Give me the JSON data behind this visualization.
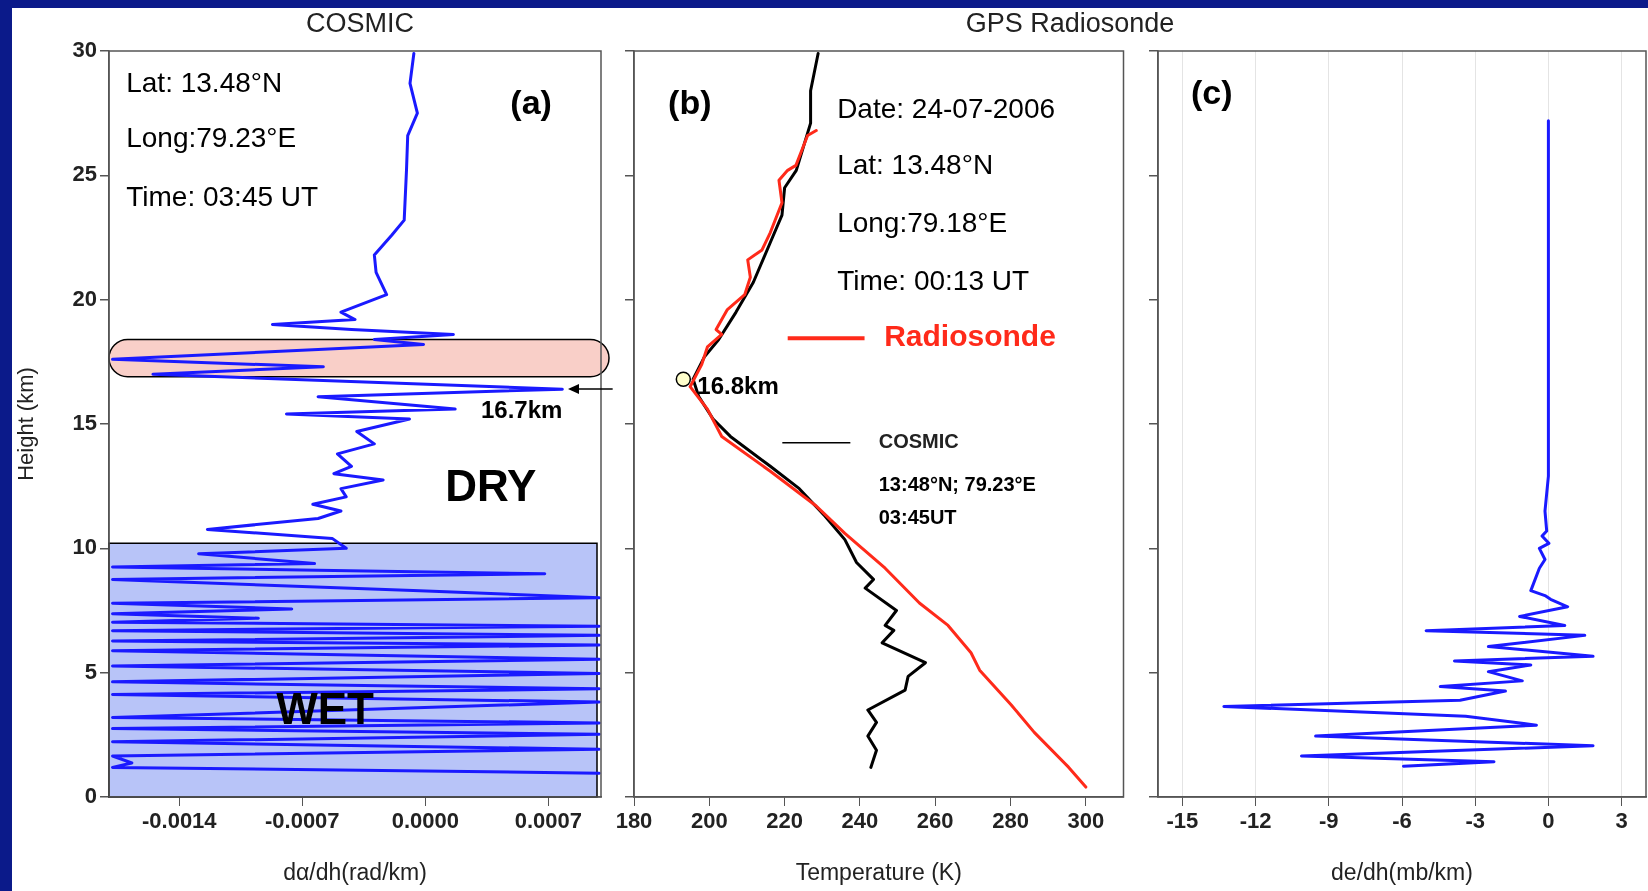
{
  "chart_data": [
    {
      "type": "line",
      "title": "COSMIC",
      "xlabel": "dα/dh(rad/km)",
      "ylabel": "Height (km)",
      "xlim": [
        -0.0018,
        0.001
      ],
      "xticks": [
        -0.0014,
        -0.0007,
        {
          "value": 0,
          "label": "0.0000"
        },
        0.0007
      ],
      "ylim": [
        0,
        30
      ],
      "yticks": [
        0,
        5,
        10,
        15,
        20,
        25,
        30
      ],
      "series": [
        {
          "color": "#1a1aff",
          "x": [
            -6.5e-05,
            -8.7e-05,
            -4.5e-05,
            -0.0001,
            -0.000107,
            -0.00012,
            -0.00019,
            -0.00029,
            -0.00028,
            -0.00022,
            -0.00048,
            -0.0004,
            -0.00087,
            -0.00042,
            0.00016,
            -0.00029,
            -1e-05,
            -0.00061,
            -0.00178,
            -0.00058,
            -0.00155,
            0.00078,
            -0.00061,
            0.00017,
            -0.00079,
            -9e-05,
            -0.00039,
            -0.00029,
            -0.0005,
            -0.00042,
            -0.00052,
            -0.00024,
            -0.00048,
            -0.00045,
            -0.00064,
            -0.00048,
            -0.00061,
            -0.00124,
            -0.00053,
            -0.00045,
            -0.00129,
            -0.00063,
            -0.00178,
            0.00068,
            -0.00178,
            -3e-05,
            0.00099,
            -0.00178,
            -0.00076,
            -0.00178,
            -0.00095,
            -0.00178,
            0.00099,
            -0.00178,
            0.00099,
            -0.00178,
            0.00099,
            -0.00178,
            0.00099,
            -0.00178,
            0.00099,
            -0.00178,
            0.00099,
            -0.00178,
            0.00099,
            -0.00178,
            0.00099,
            -0.00178,
            0.00099,
            -0.00178,
            0.00099,
            -0.00178,
            -0.00167,
            -0.00178,
            0.00099
          ],
          "values": [
            29.9,
            28.7,
            27.5,
            26.6,
            25.2,
            23.2,
            22.6,
            21.8,
            21.1,
            20.2,
            19.5,
            19.2,
            19.0,
            18.8,
            18.6,
            18.4,
            18.2,
            18.0,
            17.6,
            17.3,
            17.0,
            16.4,
            16.1,
            15.6,
            15.4,
            15.2,
            14.7,
            14.2,
            13.8,
            13.3,
            13.0,
            12.75,
            12.4,
            12.07,
            11.77,
            11.5,
            11.2,
            10.76,
            10.4,
            10.0,
            9.78,
            9.39,
            9.25,
            8.98,
            8.75,
            8.29,
            8.01,
            7.79,
            7.56,
            7.37,
            7.19,
            7.03,
            6.87,
            6.69,
            6.5,
            6.27,
            6.11,
            5.88,
            5.54,
            5.27,
            4.97,
            4.63,
            4.35,
            4.12,
            3.82,
            3.2,
            2.98,
            2.75,
            2.52,
            2.22,
            1.92,
            1.65,
            1.37,
            1.19,
            0.96
          ]
        }
      ],
      "bands": [
        {
          "axis": "y",
          "from": 0,
          "to": 10.2,
          "label": "WET",
          "color": "#b8c4f8"
        },
        {
          "axis": "y",
          "from": 16.9,
          "to": 18.4,
          "color": "#f9cfc8"
        }
      ],
      "annotations": [
        "Lat: 13.48°N",
        "Long:79.23°E",
        "Time: 03:45 UT",
        "(a)",
        "DRY",
        {
          "text": "16.7km",
          "x": 0.00078,
          "y": 16.4
        }
      ]
    },
    {
      "type": "line",
      "title": "GPS Radiosonde",
      "xlabel": "Temperature (K)",
      "xlim": [
        180,
        310
      ],
      "xticks": [
        180,
        200,
        220,
        240,
        260,
        280,
        300
      ],
      "ylim": [
        0,
        30
      ],
      "yticks": [
        0,
        5,
        10,
        15,
        20,
        25,
        30
      ],
      "tick_labels": "x",
      "legend": "right",
      "series": [
        {
          "name": "Radiosonde",
          "color": "#ff2a1a",
          "x": [
            228.4,
            226.1,
            223,
            220.8,
            218.5,
            219.3,
            216.2,
            214,
            210.2,
            210.9,
            209.4,
            204.8,
            201.8,
            203.3,
            199.5,
            198,
            194.9,
            199.5,
            203.3,
            216.2,
            228.4,
            236,
            246.7,
            255.8,
            263.4,
            269.5,
            271.8,
            280.2,
            286.3,
            295.4,
            300
          ],
          "values": [
            26.8,
            26.6,
            25.4,
            25.2,
            24.8,
            23.9,
            22.7,
            22.0,
            21.6,
            20.9,
            20.2,
            19.6,
            18.8,
            18.6,
            18.1,
            17.4,
            16.5,
            15.6,
            14.5,
            13.1,
            11.7,
            10.6,
            9.2,
            7.8,
            6.9,
            5.8,
            5.1,
            3.7,
            2.6,
            1.2,
            0.4
          ]
        },
        {
          "name": "COSMIC",
          "color": "#000000",
          "x": [
            228.9,
            226.9,
            226.9,
            223.1,
            220,
            219.3,
            216.2,
            211.7,
            207.1,
            202.5,
            198.7,
            195.7,
            197.2,
            201,
            205.6,
            216.2,
            223.9,
            230.7,
            236,
            239.1,
            243.6,
            241.4,
            249.7,
            246.7,
            249,
            245.9,
            257.4,
            252.8,
            252,
            242.1,
            244.4,
            242.1,
            244.4,
            242.9
          ],
          "values": [
            29.9,
            28.4,
            27.1,
            25.2,
            24.5,
            23.4,
            22.3,
            20.7,
            19.5,
            18.4,
            17.7,
            16.8,
            16.1,
            15.2,
            14.5,
            13.3,
            12.4,
            11.3,
            10.35,
            9.43,
            8.75,
            8.4,
            7.5,
            6.9,
            6.7,
            6.2,
            5.4,
            4.85,
            4.3,
            3.5,
            3.0,
            2.45,
            1.88,
            1.19
          ]
        },
        {
          "type": "scatter",
          "marker": "circle",
          "color": "#ffffcc",
          "x": [
            193.1
          ],
          "values": [
            16.8
          ]
        }
      ],
      "annotations": [
        "(b)",
        "Date: 24-07-2006",
        "Lat: 13.48°N",
        "Long:79.18°E",
        "Time: 00:13 UT",
        "13:48°N; 79.23°E",
        "03:45UT",
        {
          "text": "16.8km",
          "x": 193.1,
          "y": 16.8
        }
      ]
    },
    {
      "type": "line",
      "xlabel": "de/dh(mb/km)",
      "xlim": [
        -16,
        4
      ],
      "xticks": [
        -15,
        -12,
        -9,
        -6,
        -3,
        0,
        3
      ],
      "ylim": [
        0,
        30
      ],
      "yticks": [
        0,
        5,
        10,
        15,
        20,
        25,
        30
      ],
      "tick_labels": "x",
      "grid": "x",
      "series": [
        {
          "color": "#1a1aff",
          "x": [
            0,
            0,
            -0.14,
            -0.07,
            -0.26,
            0.02,
            -0.37,
            -0.14,
            -0.37,
            -0.72,
            -0.14,
            0.09,
            0.79,
            -1.18,
            0.67,
            -5.01,
            1.49,
            -2.46,
            1.83,
            -3.85,
            -0.72,
            -2.46,
            -1.07,
            -4.43,
            -1.76,
            -3.62,
            -13.3,
            -3.39,
            -0.49,
            -9.54,
            1.83,
            -10.12,
            -2.23,
            -5.94
          ],
          "values": [
            27.2,
            12.9,
            11.5,
            10.7,
            10.5,
            10.2,
            10.0,
            9.55,
            9.2,
            8.3,
            8.1,
            7.95,
            7.65,
            7.26,
            6.9,
            6.69,
            6.5,
            6.05,
            5.66,
            5.47,
            5.31,
            5.04,
            4.67,
            4.44,
            4.26,
            3.89,
            3.64,
            3.25,
            2.89,
            2.45,
            2.06,
            1.65,
            1.42,
            1.24
          ]
        }
      ],
      "annotations": [
        "(c)"
      ]
    }
  ]
}
